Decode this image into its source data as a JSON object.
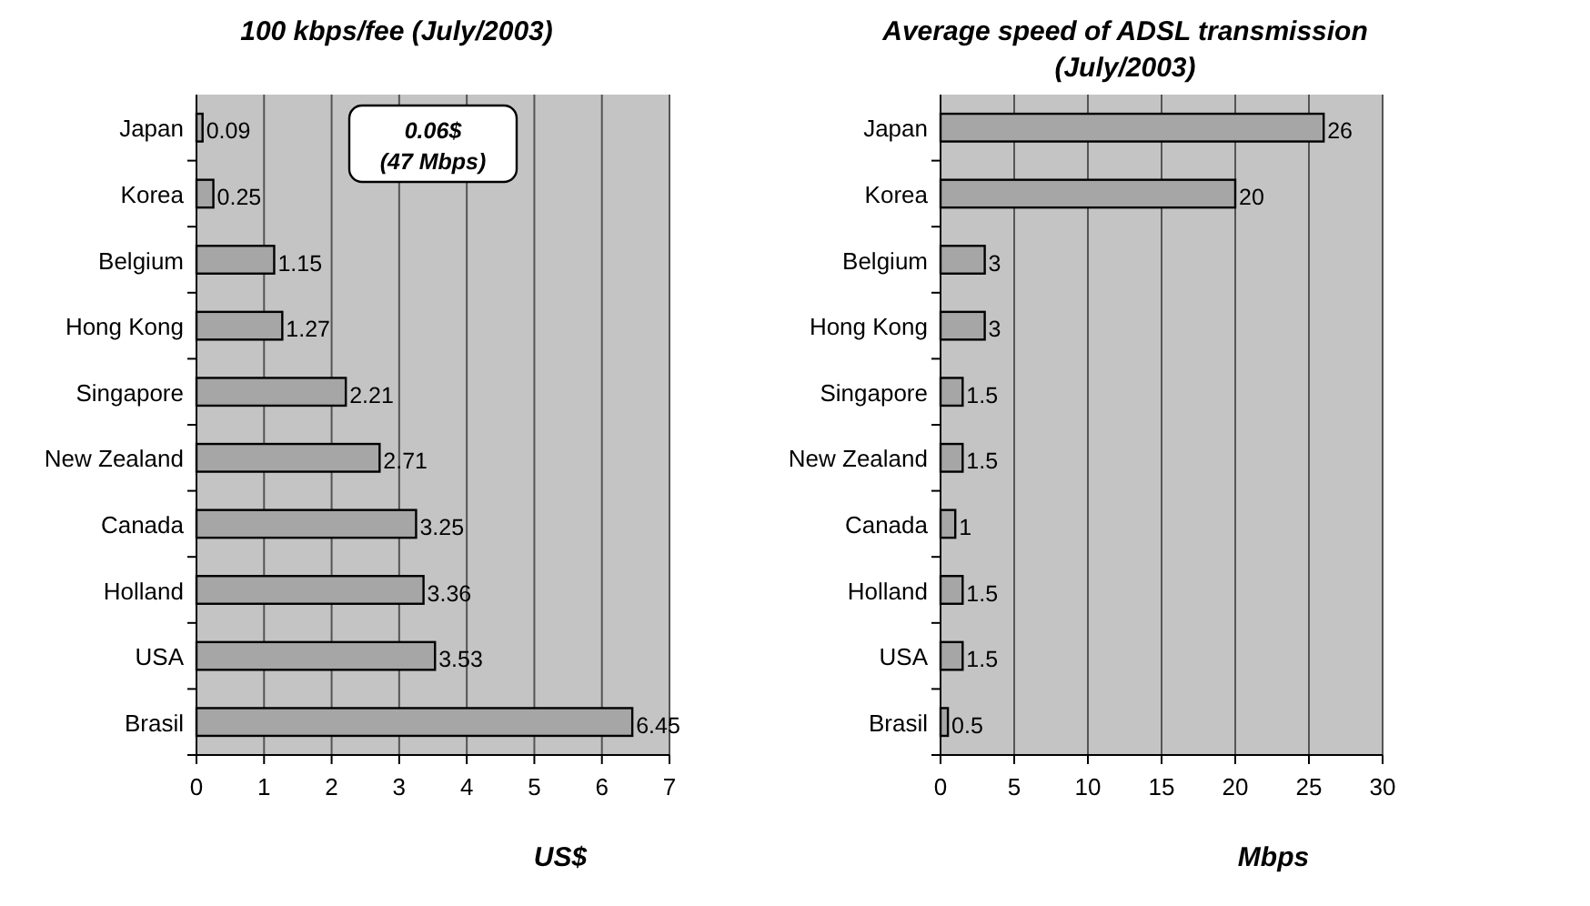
{
  "chart_data": [
    {
      "type": "bar",
      "orientation": "horizontal",
      "title": "100 kbps/fee (July/2003)",
      "xlabel": "US$",
      "categories": [
        "Japan",
        "Korea",
        "Belgium",
        "Hong Kong",
        "Singapore",
        "New Zealand",
        "Canada",
        "Holland",
        "USA",
        "Brasil"
      ],
      "values": [
        0.09,
        0.25,
        1.15,
        1.27,
        2.21,
        2.71,
        3.25,
        3.36,
        3.53,
        6.45
      ],
      "color": "#a6a6a6",
      "xlim": [
        0,
        7
      ],
      "xticks": [
        0,
        1,
        2,
        3,
        4,
        5,
        6,
        7
      ],
      "grid": "x",
      "data_labels": true,
      "annotations": [
        "0.06$\n(47 Mbps)"
      ]
    },
    {
      "type": "bar",
      "orientation": "horizontal",
      "title": "Average speed of ADSL transmission (July/2003)",
      "xlabel": "Mbps",
      "categories": [
        "Japan",
        "Korea",
        "Belgium",
        "Hong Kong",
        "Singapore",
        "New Zealand",
        "Canada",
        "Holland",
        "USA",
        "Brasil"
      ],
      "values": [
        26,
        20,
        3,
        3,
        1.5,
        1.5,
        1,
        1.5,
        1.5,
        0.5
      ],
      "color": "#a6a6a6",
      "xlim": [
        0,
        30
      ],
      "xticks": [
        0,
        5,
        10,
        15,
        20,
        25,
        30
      ],
      "grid": "x",
      "data_labels": true
    }
  ]
}
